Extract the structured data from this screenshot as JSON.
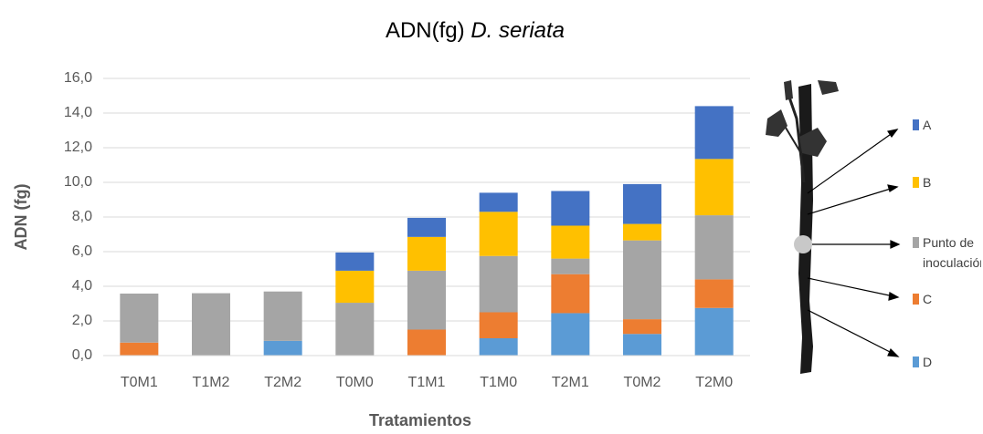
{
  "chart_data": {
    "type": "bar",
    "stacked": true,
    "title": [
      "ADN(fg)",
      "D. seriata"
    ],
    "x_label": "Tratamientos",
    "y_label": "ADN (fg)",
    "categories": [
      "T0M1",
      "T1M2",
      "T2M2",
      "T0M0",
      "T1M1",
      "T1M0",
      "T2M1",
      "T0M2",
      "T2M0"
    ],
    "series": [
      {
        "name": "D",
        "color": "#5b9bd5",
        "values": [
          0,
          0,
          0.85,
          0,
          0,
          1.0,
          2.45,
          1.25,
          2.75
        ]
      },
      {
        "name": "C",
        "color": "#ed7d31",
        "values": [
          0.75,
          0,
          0,
          0,
          1.5,
          1.5,
          2.25,
          0.85,
          1.65
        ]
      },
      {
        "name": "Punto de inoculación",
        "color": "#a5a5a5",
        "values": [
          2.83,
          3.6,
          2.85,
          3.05,
          3.4,
          3.25,
          0.9,
          4.55,
          3.7
        ]
      },
      {
        "name": "B",
        "color": "#ffc000",
        "values": [
          0,
          0,
          0,
          1.85,
          1.95,
          2.55,
          1.9,
          0.95,
          3.25
        ]
      },
      {
        "name": "A",
        "color": "#4472c4",
        "values": [
          0,
          0,
          0,
          1.05,
          1.1,
          1.1,
          2.0,
          2.3,
          3.05
        ]
      }
    ],
    "ylim": [
      0,
      16
    ],
    "yticks": [
      {
        "value": 0,
        "label": "0,0"
      },
      {
        "value": 2,
        "label": "2,0"
      },
      {
        "value": 4,
        "label": "4,0"
      },
      {
        "value": 6,
        "label": "6,0"
      },
      {
        "value": 8,
        "label": "8,0"
      },
      {
        "value": 10,
        "label": "10,0"
      },
      {
        "value": 12,
        "label": "12,0"
      },
      {
        "value": 14,
        "label": "14,0"
      },
      {
        "value": 16,
        "label": "16,0"
      }
    ],
    "grid": true
  }
}
